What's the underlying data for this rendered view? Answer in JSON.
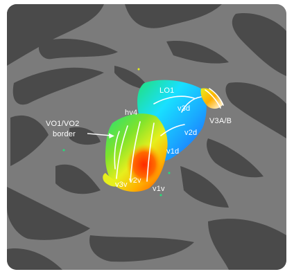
{
  "figure": {
    "colors": {
      "background": "#ffffff",
      "sulcus": "#4a4a4a",
      "gyrus": "#7b7b7b",
      "boundary_lines": "#ffffff"
    },
    "colormap": [
      "#1e5bff",
      "#1aa8ff",
      "#19e0ff",
      "#22e07a",
      "#7ee32c",
      "#e6ef1d",
      "#ffb000",
      "#ff6a00",
      "#ff2a00"
    ],
    "labels": {
      "lo1": "LO1",
      "v3d": "v3d",
      "v3ab": "V3A/B",
      "v2d": "v2d",
      "v1d": "v1d",
      "hv4": "hv4",
      "vo_border_line1": "VO1/VO2",
      "vo_border_line2": "border",
      "v3v": "v3v",
      "v2v": "v2v",
      "v1v": "v1v"
    }
  }
}
